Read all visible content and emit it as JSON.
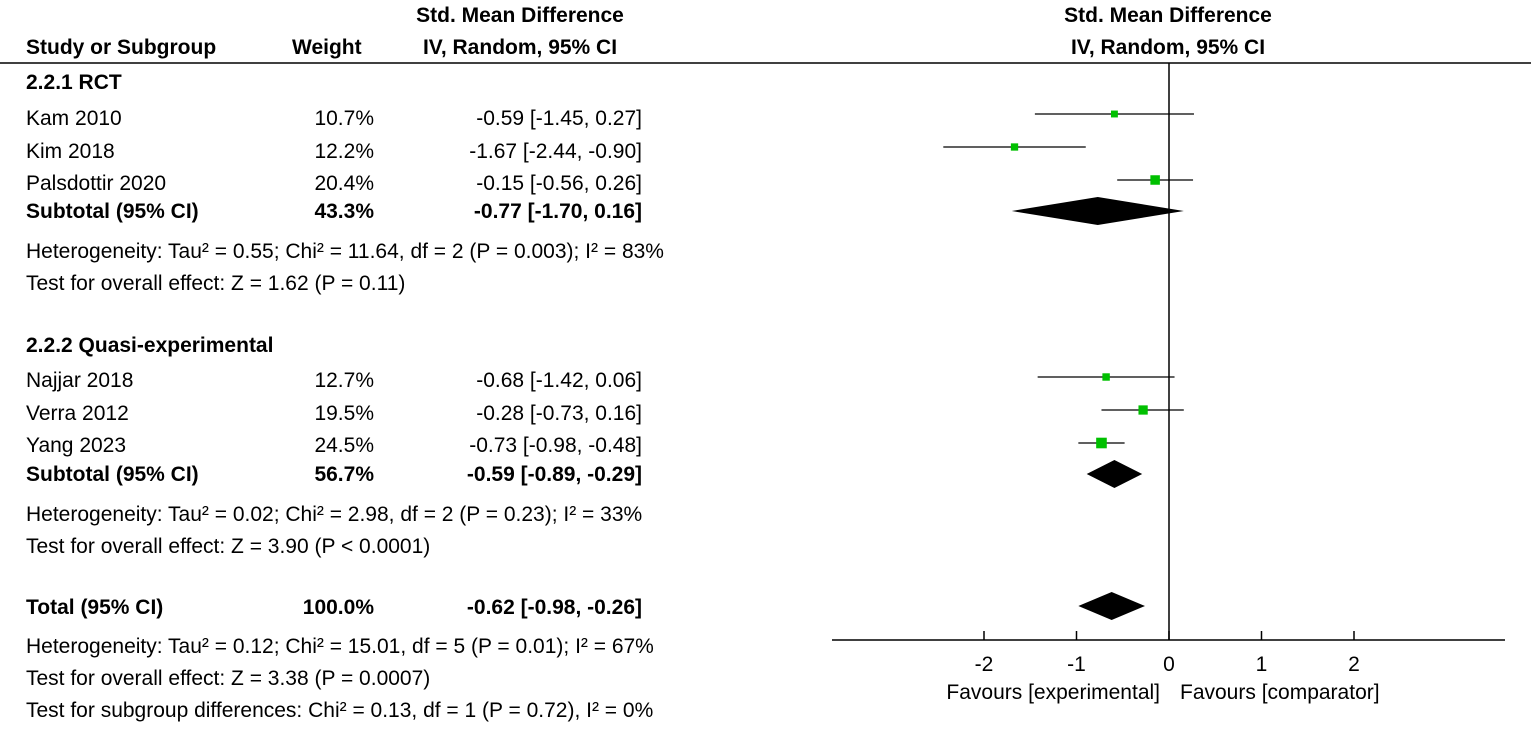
{
  "header": {
    "smd_title": "Std. Mean Difference",
    "col_study": "Study or Subgroup",
    "col_weight": "Weight",
    "col_ci": "IV, Random, 95% CI",
    "plot_title": "Std. Mean Difference",
    "plot_subtitle": "IV, Random, 95% CI"
  },
  "groups": [
    {
      "title": "2.2.1 RCT",
      "studies": [
        {
          "name": "Kam 2010",
          "weight": "10.7%",
          "ci": "-0.59 [-1.45, 0.27]"
        },
        {
          "name": "Kim 2018",
          "weight": "12.2%",
          "ci": "-1.67 [-2.44, -0.90]"
        },
        {
          "name": "Palsdottir 2020",
          "weight": "20.4%",
          "ci": "-0.15 [-0.56, 0.26]"
        }
      ],
      "subtotal": {
        "label": "Subtotal (95% CI)",
        "weight": "43.3%",
        "ci": "-0.77 [-1.70, 0.16]"
      },
      "heterogeneity": "Heterogeneity: Tau² = 0.55; Chi² = 11.64, df = 2 (P = 0.003); I² = 83%",
      "overall": "Test for overall effect: Z = 1.62 (P = 0.11)"
    },
    {
      "title": "2.2.2 Quasi-experimental",
      "studies": [
        {
          "name": "Najjar 2018",
          "weight": "12.7%",
          "ci": "-0.68 [-1.42, 0.06]"
        },
        {
          "name": "Verra 2012",
          "weight": "19.5%",
          "ci": "-0.28 [-0.73, 0.16]"
        },
        {
          "name": "Yang 2023",
          "weight": "24.5%",
          "ci": "-0.73 [-0.98, -0.48]"
        }
      ],
      "subtotal": {
        "label": "Subtotal (95% CI)",
        "weight": "56.7%",
        "ci": "-0.59 [-0.89, -0.29]"
      },
      "heterogeneity": "Heterogeneity: Tau² = 0.02; Chi² = 2.98, df = 2 (P = 0.23); I² = 33%",
      "overall": "Test for overall effect: Z = 3.90 (P < 0.0001)"
    }
  ],
  "total": {
    "label": "Total (95% CI)",
    "weight": "100.0%",
    "ci": "-0.62 [-0.98, -0.26]",
    "heterogeneity": "Heterogeneity: Tau² = 0.12; Chi² = 15.01, df = 5 (P = 0.01); I² = 67%",
    "overall": "Test for overall effect: Z = 3.38 (P = 0.0007)",
    "subgroup_diff": "Test for subgroup differences: Chi² = 0.13, df = 1 (P = 0.72), I² = 0%"
  },
  "axis": {
    "favours_left": "Favours [experimental]",
    "favours_right": "Favours [comparator]"
  },
  "colors": {
    "marker": "#00c000",
    "diamond": "#000000",
    "line": "#000000"
  },
  "chart_data": {
    "type": "forest",
    "title": "Std. Mean Difference",
    "subtitle": "IV, Random, 95% CI",
    "xlim": [
      -3.4,
      3.6
    ],
    "ticks": [
      -2,
      -1,
      0,
      1,
      2
    ],
    "tick_labels": [
      "-2",
      "-1",
      "0",
      "1",
      "2"
    ],
    "studies": [
      {
        "name": "Kam 2010",
        "est": -0.59,
        "lo": -1.45,
        "hi": 0.27,
        "weight": 10.7
      },
      {
        "name": "Kim 2018",
        "est": -1.67,
        "lo": -2.44,
        "hi": -0.9,
        "weight": 12.2
      },
      {
        "name": "Palsdottir 2020",
        "est": -0.15,
        "lo": -0.56,
        "hi": 0.26,
        "weight": 20.4
      },
      {
        "name": "Najjar 2018",
        "est": -0.68,
        "lo": -1.42,
        "hi": 0.06,
        "weight": 12.7
      },
      {
        "name": "Verra 2012",
        "est": -0.28,
        "lo": -0.73,
        "hi": 0.16,
        "weight": 19.5
      },
      {
        "name": "Yang 2023",
        "est": -0.73,
        "lo": -0.98,
        "hi": -0.48,
        "weight": 24.5
      }
    ],
    "summaries": [
      {
        "name": "Subtotal 2.2.1 RCT",
        "est": -0.77,
        "lo": -1.7,
        "hi": 0.16
      },
      {
        "name": "Subtotal 2.2.2 Quasi-experimental",
        "est": -0.59,
        "lo": -0.89,
        "hi": -0.29
      },
      {
        "name": "Total",
        "est": -0.62,
        "lo": -0.98,
        "hi": -0.26
      }
    ]
  }
}
